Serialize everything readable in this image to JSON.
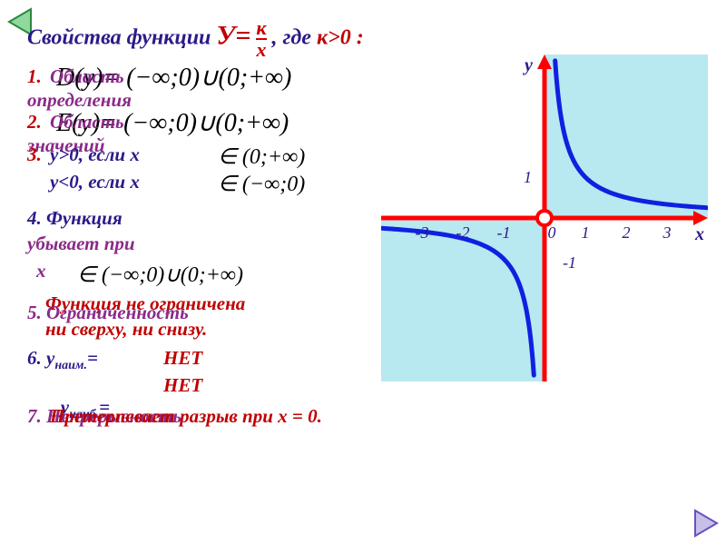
{
  "title": {
    "pre": "Свойства функции ",
    "y_eq": "У=",
    "frac_num": "к",
    "frac_den": "х",
    "post": " , где ",
    "cond": "к>0 :",
    "color_main": "#2a1a8a",
    "color_red": "#c00000"
  },
  "nav": {
    "back_color_fill": "#8fd9a0",
    "back_color_stroke": "#2a8a3a",
    "fwd_color_fill": "#c8c0e8",
    "fwd_color_stroke": "#6a50c0"
  },
  "props": {
    "p1_a": "1.",
    "p1_b": "Область",
    "p1_c": "определения",
    "p2_a": "2.",
    "p2_b": "Область",
    "p2_c": "значений",
    "p3_a": "3.",
    "p3_b": "у>0, если  х",
    "p3_c": "у<0, если  х",
    "p4_a": "4.  Функция",
    "p4_b": "убывает при",
    "p4_c": " х",
    "p4_d": "    Функция не ограничена",
    "p4_e": "ни сверху, ни снизу.",
    "p5": "5.  Ограниченность",
    "p6_a": "6.  у",
    "p6_sub1": "наим.",
    "p6_eq": "=",
    "p6_v1": "НЕТ",
    "p6_b": "     у",
    "p6_sub2": "наиб.",
    "p6_v2": "НЕТ",
    "p7_a": "7. Непрерывность",
    "p7_b": "Претерпевает разрыв при х = 0.",
    "color_purple": "#8a2a8a",
    "color_blue": "#2a1a8a",
    "color_red": "#c00000",
    "color_black": "#000"
  },
  "formulas": {
    "f1": " D(y)= (−∞;0)∪(0;+∞)",
    "f2": " E(y)= (−∞;0)∪(0;+∞)",
    "f3": "∈ (0;+∞)",
    "f4": "∈ (−∞;0)",
    "f5": "∈ (−∞;0)∪(0;+∞)"
  },
  "chart": {
    "bg": "#b8e8f0",
    "axis_color": "#ff0000",
    "axis_width": 5,
    "curve_color": "#1020e0",
    "curve_width": 5,
    "label_color": "#2a1a8a",
    "label_x": "х",
    "label_y": "у",
    "ticks_x": [
      "-3",
      "-2",
      "-1",
      "0",
      "1",
      "2",
      "3"
    ],
    "tick_y_pos": "1",
    "tick_y_neg": "-1",
    "k": 1,
    "x_range": [
      -4,
      4
    ],
    "y_range": [
      -4,
      4
    ]
  }
}
